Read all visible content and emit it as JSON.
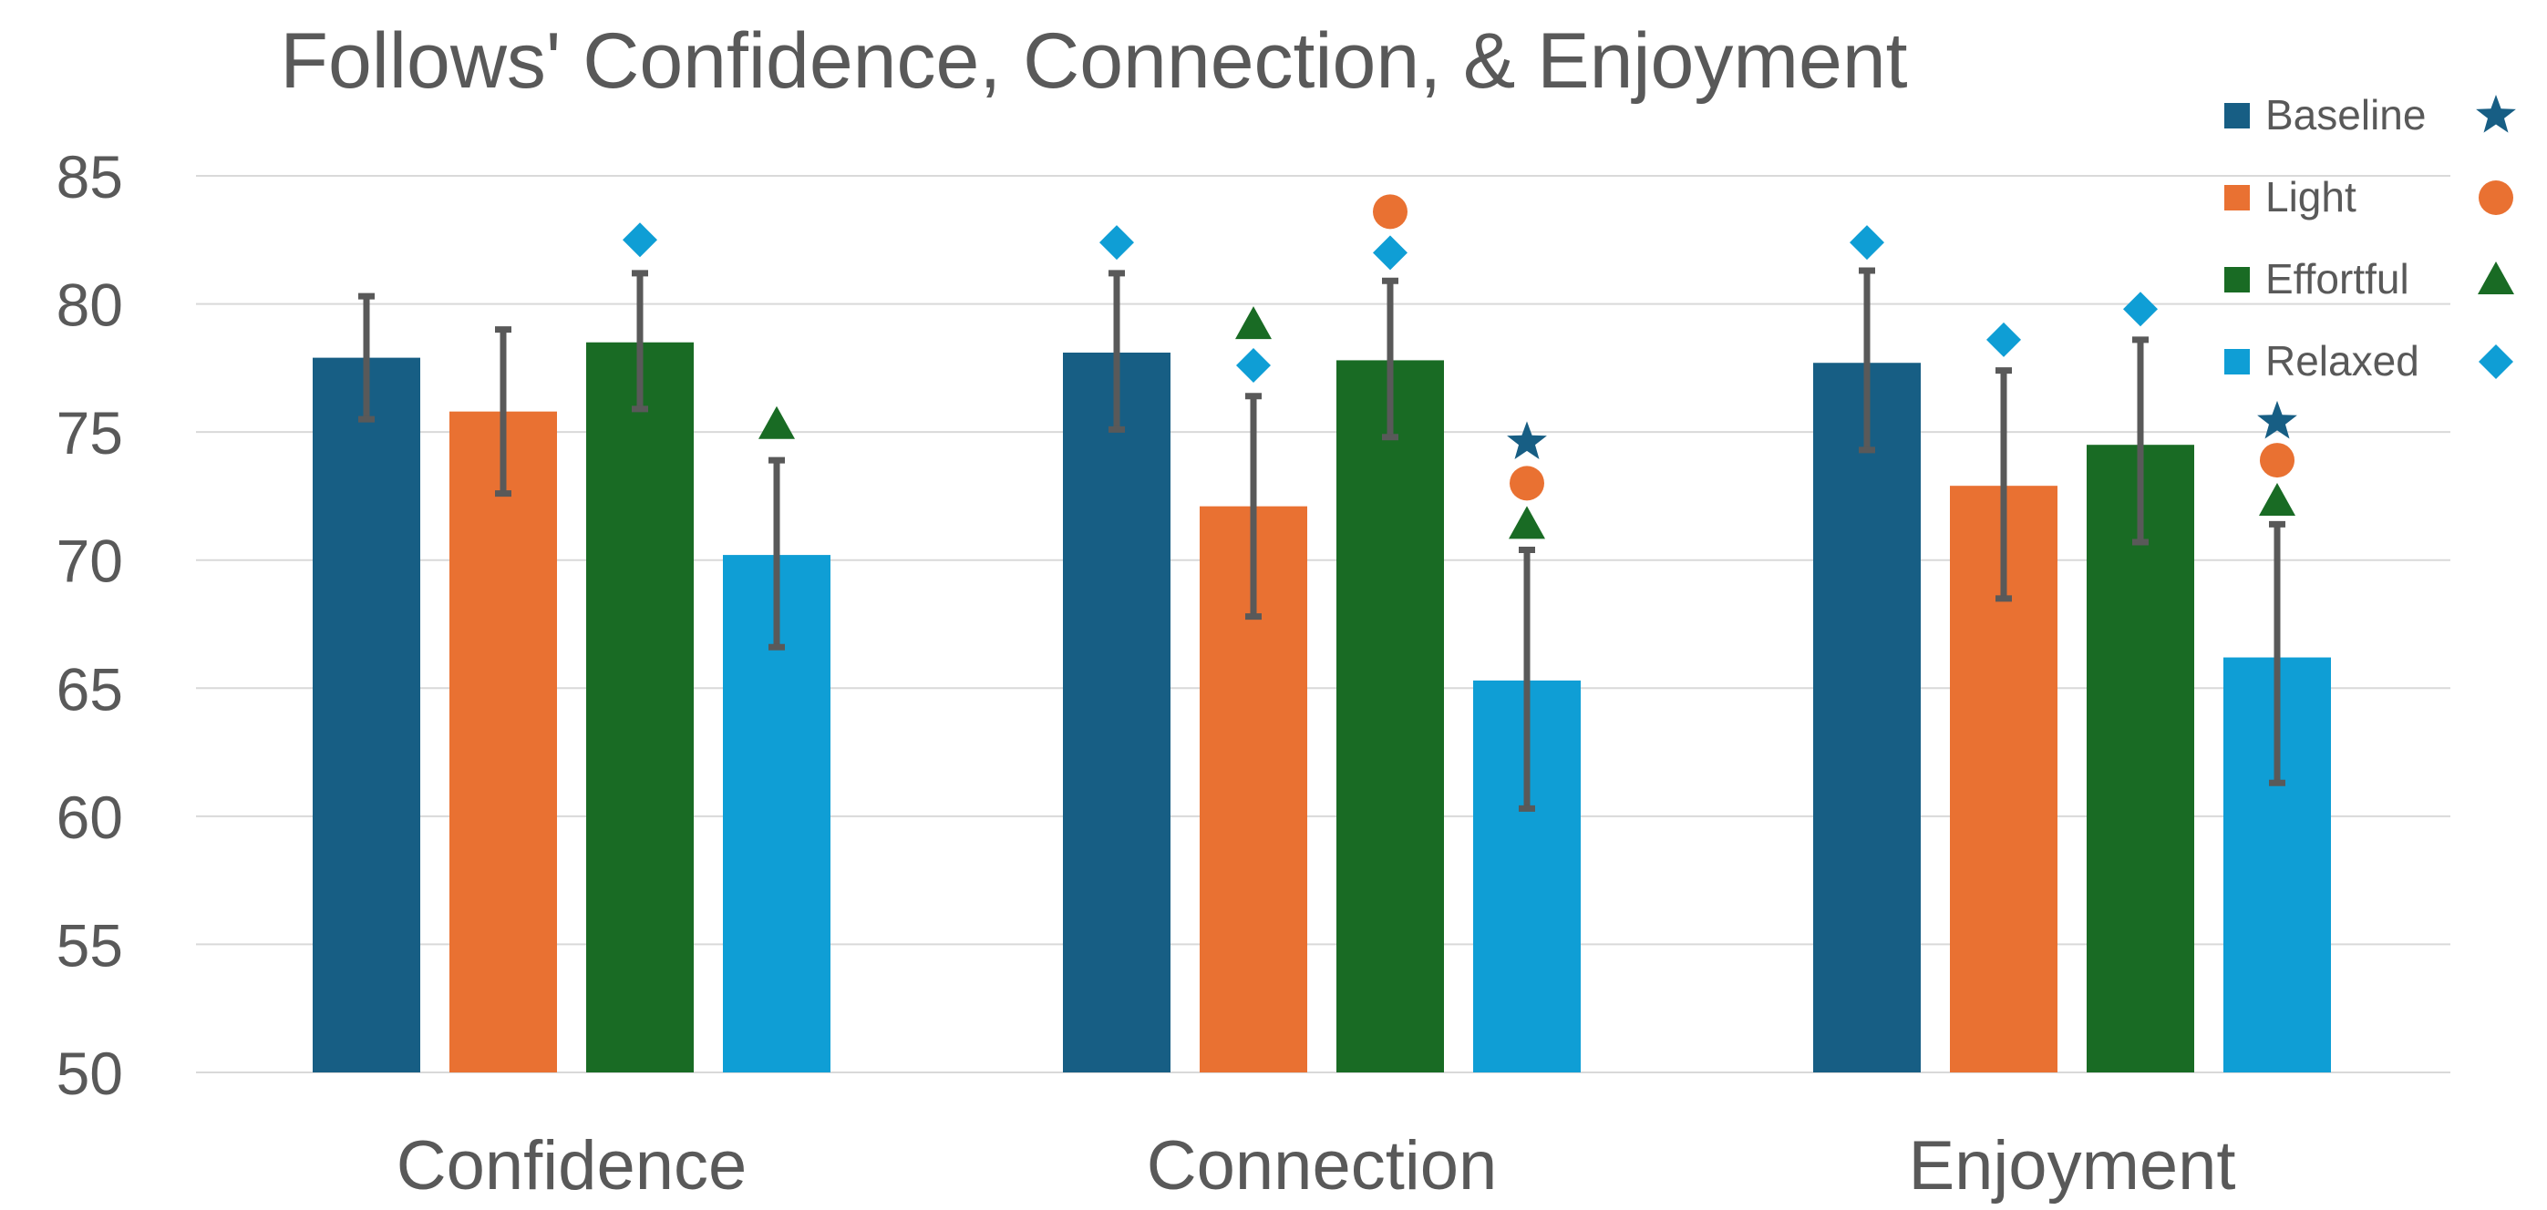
{
  "chart_data": {
    "type": "bar",
    "title": "Follows' Confidence, Connection, & Enjoyment",
    "xlabel": "",
    "ylabel": "",
    "ylim": [
      50,
      85
    ],
    "yticks": [
      50,
      55,
      60,
      65,
      70,
      75,
      80,
      85
    ],
    "ytick_labels": [
      "50",
      "55",
      "60",
      "65",
      "70",
      "75",
      "80",
      "85"
    ],
    "grid": true,
    "legend_position": "right",
    "categories": [
      "Confidence",
      "Connection",
      "Enjoyment"
    ],
    "series": [
      {
        "name": "Baseline",
        "color": "#175E84",
        "marker_icon": "star",
        "values": [
          77.9,
          78.1,
          77.7
        ],
        "error_low": [
          75.5,
          75.1,
          74.3
        ],
        "error_high": [
          80.3,
          81.2,
          81.3
        ]
      },
      {
        "name": "Light",
        "color": "#E97132",
        "marker_icon": "circle",
        "values": [
          75.8,
          72.1,
          72.9
        ],
        "error_low": [
          72.6,
          67.8,
          68.5
        ],
        "error_high": [
          79.0,
          76.4,
          77.4
        ]
      },
      {
        "name": "Effortful",
        "color": "#196B24",
        "marker_icon": "triangle",
        "values": [
          78.5,
          77.8,
          74.5
        ],
        "error_low": [
          75.9,
          74.8,
          70.7
        ],
        "error_high": [
          81.2,
          80.9,
          78.6
        ]
      },
      {
        "name": "Relaxed",
        "color": "#0F9ED5",
        "marker_icon": "diamond",
        "values": [
          70.2,
          65.3,
          66.2
        ],
        "error_low": [
          66.6,
          60.3,
          61.3
        ],
        "error_high": [
          73.9,
          70.4,
          71.4
        ]
      }
    ],
    "significance_markers": [
      {
        "category": "Confidence",
        "bar": "Effortful",
        "markers": [
          {
            "symbol": "diamond",
            "color": "#0F9ED5",
            "y": 82.5
          }
        ]
      },
      {
        "category": "Confidence",
        "bar": "Relaxed",
        "markers": [
          {
            "symbol": "triangle",
            "color": "#196B24",
            "y": 75.3
          }
        ]
      },
      {
        "category": "Connection",
        "bar": "Baseline",
        "markers": [
          {
            "symbol": "diamond",
            "color": "#0F9ED5",
            "y": 82.4
          }
        ]
      },
      {
        "category": "Connection",
        "bar": "Light",
        "markers": [
          {
            "symbol": "triangle",
            "color": "#196B24",
            "y": 79.2
          },
          {
            "symbol": "diamond",
            "color": "#0F9ED5",
            "y": 77.6
          }
        ]
      },
      {
        "category": "Connection",
        "bar": "Effortful",
        "markers": [
          {
            "symbol": "circle",
            "color": "#E97132",
            "y": 83.6
          },
          {
            "symbol": "diamond",
            "color": "#0F9ED5",
            "y": 82.0
          }
        ]
      },
      {
        "category": "Connection",
        "bar": "Relaxed",
        "markers": [
          {
            "symbol": "star",
            "color": "#175E84",
            "y": 74.6
          },
          {
            "symbol": "circle",
            "color": "#E97132",
            "y": 73.0
          },
          {
            "symbol": "triangle",
            "color": "#196B24",
            "y": 71.4
          }
        ]
      },
      {
        "category": "Enjoyment",
        "bar": "Baseline",
        "markers": [
          {
            "symbol": "diamond",
            "color": "#0F9ED5",
            "y": 82.4
          }
        ]
      },
      {
        "category": "Enjoyment",
        "bar": "Light",
        "markers": [
          {
            "symbol": "diamond",
            "color": "#0F9ED5",
            "y": 78.6
          }
        ]
      },
      {
        "category": "Enjoyment",
        "bar": "Effortful",
        "markers": [
          {
            "symbol": "diamond",
            "color": "#0F9ED5",
            "y": 79.8
          }
        ]
      },
      {
        "category": "Enjoyment",
        "bar": "Relaxed",
        "markers": [
          {
            "symbol": "star",
            "color": "#175E84",
            "y": 75.4
          },
          {
            "symbol": "circle",
            "color": "#E97132",
            "y": 73.9
          },
          {
            "symbol": "triangle",
            "color": "#196B24",
            "y": 72.3
          }
        ]
      }
    ]
  },
  "colors": {
    "axis_text": "#595959",
    "gridline": "#D9D9D9",
    "error_bar": "#595959"
  }
}
